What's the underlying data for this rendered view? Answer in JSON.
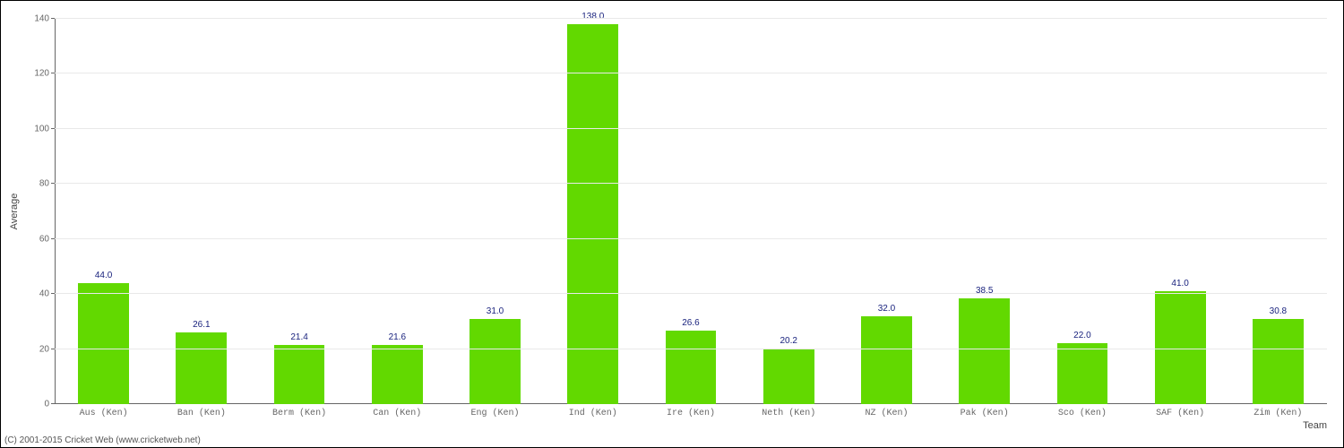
{
  "chart": {
    "type": "bar",
    "ylabel": "Average",
    "xlabel": "Team",
    "ylim": [
      0,
      140
    ],
    "ytick_step": 20,
    "yticks": [
      0,
      20,
      40,
      60,
      80,
      100,
      120,
      140
    ],
    "bar_color": "#62d900",
    "grid_color": "#e9e9e9",
    "axis_color": "#666666",
    "background_color": "#ffffff",
    "value_label_color": "#1a237e",
    "tick_label_color": "#666666",
    "bar_width_ratio": 0.52,
    "categories": [
      "Aus (Ken)",
      "Ban (Ken)",
      "Berm (Ken)",
      "Can (Ken)",
      "Eng (Ken)",
      "Ind (Ken)",
      "Ire (Ken)",
      "Neth (Ken)",
      "NZ (Ken)",
      "Pak (Ken)",
      "Sco (Ken)",
      "SAF (Ken)",
      "Zim (Ken)"
    ],
    "values": [
      44.0,
      26.1,
      21.4,
      21.6,
      31.0,
      138.0,
      26.6,
      20.2,
      32.0,
      38.5,
      22.0,
      41.0,
      30.8
    ],
    "value_labels": [
      "44.0",
      "26.1",
      "21.4",
      "21.6",
      "31.0",
      "138.0",
      "26.6",
      "20.2",
      "32.0",
      "38.5",
      "22.0",
      "41.0",
      "30.8"
    ],
    "label_fontsize": 11,
    "tick_fontsize": 10,
    "value_fontsize": 10
  },
  "footer": "(C) 2001-2015 Cricket Web (www.cricketweb.net)"
}
